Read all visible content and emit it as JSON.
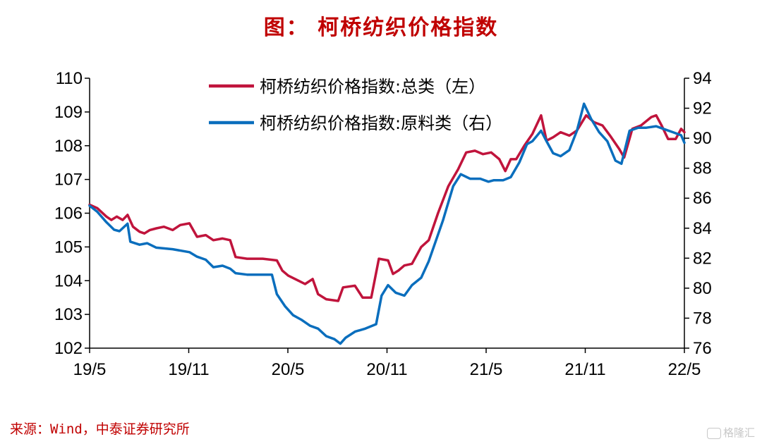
{
  "title": "图： 柯桥纺织价格指数",
  "source": "来源：Wind，中泰证券研究所",
  "watermark": "格隆汇",
  "chart_data": {
    "type": "line",
    "x_ticks": [
      "19/5",
      "19/11",
      "20/5",
      "20/11",
      "21/5",
      "21/11",
      "22/5"
    ],
    "y_left": {
      "range": [
        102,
        110
      ],
      "ticks": [
        102,
        103,
        104,
        105,
        106,
        107,
        108,
        109,
        110
      ]
    },
    "y_right": {
      "range": [
        76,
        94
      ],
      "ticks": [
        76,
        78,
        80,
        82,
        84,
        86,
        88,
        90,
        92,
        94
      ]
    },
    "legend_position": "top-center",
    "grid": false,
    "series": [
      {
        "name": "柯桥纺织价格指数:总类（左）",
        "color": "#c0143c",
        "axis": "left",
        "points": [
          [
            "2019-05-01",
            106.25
          ],
          [
            "2019-05-15",
            106.15
          ],
          [
            "2019-06-01",
            105.9
          ],
          [
            "2019-06-10",
            105.8
          ],
          [
            "2019-06-20",
            105.9
          ],
          [
            "2019-07-01",
            105.8
          ],
          [
            "2019-07-10",
            105.95
          ],
          [
            "2019-07-20",
            105.6
          ],
          [
            "2019-08-01",
            105.45
          ],
          [
            "2019-08-10",
            105.4
          ],
          [
            "2019-08-20",
            105.5
          ],
          [
            "2019-09-01",
            105.55
          ],
          [
            "2019-09-15",
            105.6
          ],
          [
            "2019-10-01",
            105.5
          ],
          [
            "2019-10-15",
            105.65
          ],
          [
            "2019-11-01",
            105.7
          ],
          [
            "2019-11-15",
            105.3
          ],
          [
            "2019-12-01",
            105.35
          ],
          [
            "2019-12-15",
            105.2
          ],
          [
            "2020-01-01",
            105.25
          ],
          [
            "2020-01-15",
            105.2
          ],
          [
            "2020-01-25",
            104.7
          ],
          [
            "2020-02-15",
            104.65
          ],
          [
            "2020-03-15",
            104.65
          ],
          [
            "2020-04-10",
            104.6
          ],
          [
            "2020-04-20",
            104.3
          ],
          [
            "2020-05-01",
            104.15
          ],
          [
            "2020-05-20",
            104.0
          ],
          [
            "2020-06-01",
            103.9
          ],
          [
            "2020-06-15",
            104.05
          ],
          [
            "2020-06-25",
            103.6
          ],
          [
            "2020-07-10",
            103.45
          ],
          [
            "2020-08-01",
            103.4
          ],
          [
            "2020-08-10",
            103.8
          ],
          [
            "2020-09-01",
            103.85
          ],
          [
            "2020-09-15",
            103.5
          ],
          [
            "2020-10-01",
            103.5
          ],
          [
            "2020-10-15",
            104.65
          ],
          [
            "2020-11-01",
            104.6
          ],
          [
            "2020-11-10",
            104.2
          ],
          [
            "2020-11-20",
            104.3
          ],
          [
            "2020-12-01",
            104.45
          ],
          [
            "2020-12-15",
            104.5
          ],
          [
            "2021-01-01",
            105.0
          ],
          [
            "2021-01-15",
            105.2
          ],
          [
            "2021-02-01",
            106.0
          ],
          [
            "2021-02-20",
            106.8
          ],
          [
            "2021-03-10",
            107.3
          ],
          [
            "2021-03-25",
            107.8
          ],
          [
            "2021-04-10",
            107.85
          ],
          [
            "2021-04-25",
            107.75
          ],
          [
            "2021-05-10",
            107.8
          ],
          [
            "2021-05-25",
            107.6
          ],
          [
            "2021-06-05",
            107.25
          ],
          [
            "2021-06-15",
            107.6
          ],
          [
            "2021-06-25",
            107.6
          ],
          [
            "2021-07-10",
            108.0
          ],
          [
            "2021-07-25",
            108.35
          ],
          [
            "2021-08-10",
            108.9
          ],
          [
            "2021-08-20",
            108.15
          ],
          [
            "2021-09-01",
            108.25
          ],
          [
            "2021-09-15",
            108.4
          ],
          [
            "2021-10-01",
            108.3
          ],
          [
            "2021-10-15",
            108.45
          ],
          [
            "2021-11-01",
            108.9
          ],
          [
            "2021-11-15",
            108.7
          ],
          [
            "2021-12-01",
            108.6
          ],
          [
            "2021-12-15",
            108.3
          ],
          [
            "2022-01-01",
            107.9
          ],
          [
            "2022-01-10",
            107.65
          ],
          [
            "2022-01-25",
            108.5
          ],
          [
            "2022-02-10",
            108.6
          ],
          [
            "2022-03-01",
            108.85
          ],
          [
            "2022-03-10",
            108.9
          ],
          [
            "2022-03-20",
            108.6
          ],
          [
            "2022-04-01",
            108.2
          ],
          [
            "2022-04-15",
            108.2
          ],
          [
            "2022-04-25",
            108.5
          ],
          [
            "2022-05-01",
            108.4
          ]
        ]
      },
      {
        "name": "柯桥纺织价格指数:原料类（右）",
        "color": "#0a6ebd",
        "axis": "right",
        "points": [
          [
            "2019-05-01",
            85.5
          ],
          [
            "2019-05-15",
            85.1
          ],
          [
            "2019-06-01",
            84.4
          ],
          [
            "2019-06-15",
            83.9
          ],
          [
            "2019-06-25",
            83.8
          ],
          [
            "2019-07-10",
            84.3
          ],
          [
            "2019-07-15",
            83.1
          ],
          [
            "2019-08-01",
            82.9
          ],
          [
            "2019-08-15",
            83.0
          ],
          [
            "2019-09-01",
            82.7
          ],
          [
            "2019-10-01",
            82.6
          ],
          [
            "2019-11-01",
            82.4
          ],
          [
            "2019-11-15",
            82.1
          ],
          [
            "2019-12-01",
            81.9
          ],
          [
            "2019-12-15",
            81.4
          ],
          [
            "2020-01-01",
            81.5
          ],
          [
            "2020-01-15",
            81.3
          ],
          [
            "2020-01-25",
            81.0
          ],
          [
            "2020-02-15",
            80.9
          ],
          [
            "2020-03-15",
            80.9
          ],
          [
            "2020-04-01",
            80.9
          ],
          [
            "2020-04-10",
            79.6
          ],
          [
            "2020-04-25",
            78.8
          ],
          [
            "2020-05-10",
            78.2
          ],
          [
            "2020-05-25",
            77.9
          ],
          [
            "2020-06-10",
            77.5
          ],
          [
            "2020-06-25",
            77.3
          ],
          [
            "2020-07-10",
            76.8
          ],
          [
            "2020-07-25",
            76.6
          ],
          [
            "2020-08-05",
            76.3
          ],
          [
            "2020-08-15",
            76.7
          ],
          [
            "2020-09-01",
            77.1
          ],
          [
            "2020-09-20",
            77.3
          ],
          [
            "2020-10-10",
            77.6
          ],
          [
            "2020-10-20",
            79.5
          ],
          [
            "2020-11-01",
            80.2
          ],
          [
            "2020-11-15",
            79.7
          ],
          [
            "2020-12-01",
            79.5
          ],
          [
            "2020-12-15",
            80.2
          ],
          [
            "2021-01-01",
            80.7
          ],
          [
            "2021-01-15",
            81.8
          ],
          [
            "2021-02-10",
            84.5
          ],
          [
            "2021-03-01",
            86.8
          ],
          [
            "2021-03-15",
            87.6
          ],
          [
            "2021-04-01",
            87.3
          ],
          [
            "2021-04-20",
            87.3
          ],
          [
            "2021-05-05",
            87.1
          ],
          [
            "2021-05-15",
            87.2
          ],
          [
            "2021-06-01",
            87.2
          ],
          [
            "2021-06-15",
            87.4
          ],
          [
            "2021-07-01",
            88.4
          ],
          [
            "2021-07-15",
            89.6
          ],
          [
            "2021-07-25",
            89.8
          ],
          [
            "2021-08-10",
            90.5
          ],
          [
            "2021-08-20",
            89.8
          ],
          [
            "2021-09-01",
            89.0
          ],
          [
            "2021-09-15",
            88.8
          ],
          [
            "2021-10-01",
            89.2
          ],
          [
            "2021-10-15",
            90.5
          ],
          [
            "2021-10-28",
            92.3
          ],
          [
            "2021-11-10",
            91.3
          ],
          [
            "2021-11-25",
            90.4
          ],
          [
            "2021-12-10",
            89.8
          ],
          [
            "2021-12-25",
            88.5
          ],
          [
            "2022-01-05",
            88.3
          ],
          [
            "2022-01-20",
            90.5
          ],
          [
            "2022-02-05",
            90.7
          ],
          [
            "2022-02-20",
            90.7
          ],
          [
            "2022-03-10",
            90.8
          ],
          [
            "2022-03-25",
            90.6
          ],
          [
            "2022-04-10",
            90.4
          ],
          [
            "2022-04-25",
            90.2
          ],
          [
            "2022-05-01",
            89.7
          ]
        ]
      }
    ]
  }
}
